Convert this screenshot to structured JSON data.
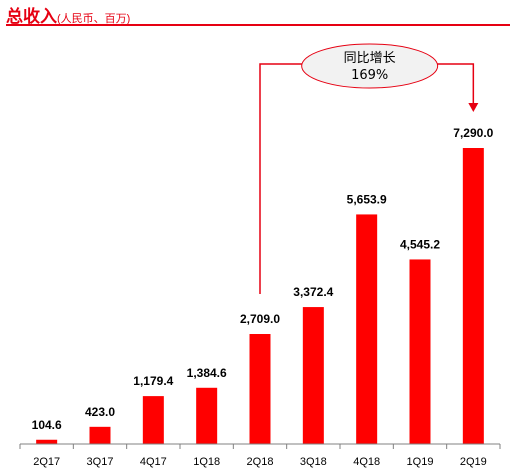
{
  "header": {
    "title": "总收入",
    "subtitle": "(人民币、百万)"
  },
  "colors": {
    "accent": "#e60012",
    "bar": "#ff0000",
    "callout_fill": "#f2f2f2"
  },
  "callout": {
    "line1": "同比增长",
    "line2": "169%"
  },
  "chart_data": {
    "type": "bar",
    "categories": [
      "2Q17",
      "3Q17",
      "4Q17",
      "1Q18",
      "2Q18",
      "3Q18",
      "4Q18",
      "1Q19",
      "2Q19"
    ],
    "values": [
      104.6,
      423.0,
      1179.4,
      1384.6,
      2709.0,
      3372.4,
      5653.9,
      4545.2,
      7290.0
    ],
    "value_labels": [
      "104.6",
      "423.0",
      "1,179.4",
      "1,384.6",
      "2,709.0",
      "3,372.4",
      "5,653.9",
      "4,545.2",
      "7,290.0"
    ],
    "title": "总收入",
    "ylim": [
      0,
      7290.0
    ],
    "grid": false,
    "legend": "none",
    "annotation": {
      "from": "2Q18",
      "to": "2Q19",
      "text": "同比增长 169%"
    }
  }
}
